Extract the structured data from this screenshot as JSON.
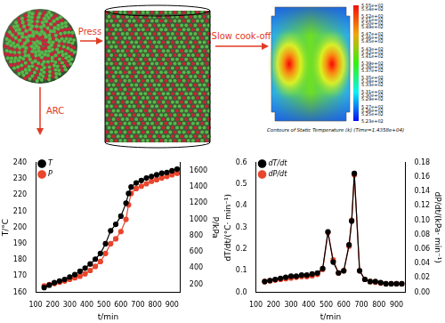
{
  "diagram": {
    "arrows": [
      {
        "label": "Press"
      },
      {
        "label": "Slow cook-off"
      },
      {
        "label": "ARC"
      }
    ],
    "contour": {
      "title": "Contours of Static Temperature (k) (Time=1.4358e+04)",
      "colorbar": {
        "range": [
          523,
          555
        ],
        "ticks": [
          {
            "value": 555,
            "label": "5.55e+02"
          },
          {
            "value": 554,
            "label": "5.54e+02"
          },
          {
            "value": 552,
            "label": "5.52e+02"
          },
          {
            "value": 551,
            "label": "5.51e+02"
          },
          {
            "value": 550,
            "label": "5.50e+02"
          },
          {
            "value": 549,
            "label": "5.49e+02"
          },
          {
            "value": 547,
            "label": "5.47e+02"
          },
          {
            "value": 546,
            "label": "5.46e+02"
          },
          {
            "value": 545,
            "label": "5.45e+02"
          },
          {
            "value": 543,
            "label": "5.43e+02"
          },
          {
            "value": 542,
            "label": "5.42e+02"
          },
          {
            "value": 541,
            "label": "5.41e+02"
          },
          {
            "value": 539,
            "label": "5.39e+02"
          },
          {
            "value": 538,
            "label": "5.38e+02"
          },
          {
            "value": 537,
            "label": "5.37e+02"
          },
          {
            "value": 535,
            "label": "5.35e+02"
          },
          {
            "value": 534,
            "label": "5.34e+02"
          },
          {
            "value": 533,
            "label": "5.33e+02"
          },
          {
            "value": 531,
            "label": "5.31e+02"
          },
          {
            "value": 530,
            "label": "5.30e+02"
          },
          {
            "value": 529,
            "label": "5.29e+02"
          },
          {
            "value": 527,
            "label": "5.27e+02"
          },
          {
            "value": 526,
            "label": "5.26e+02"
          },
          {
            "value": 525,
            "label": "5.25e+02"
          },
          {
            "value": 523,
            "label": "5.23e+02"
          }
        ]
      }
    }
  },
  "chart_data": [
    {
      "type": "line",
      "x_label": "t/min",
      "y_label": "T/°C",
      "y2_label": "P/kPa",
      "xlim": [
        100,
        950
      ],
      "xticks": [
        100,
        200,
        300,
        400,
        500,
        600,
        700,
        800,
        900
      ],
      "ylim": [
        160,
        240
      ],
      "yticks": [
        160,
        170,
        180,
        190,
        200,
        210,
        220,
        230,
        240
      ],
      "y2lim": [
        100,
        1700
      ],
      "y2ticks": [
        200,
        400,
        600,
        800,
        1000,
        1200,
        1400,
        1600
      ],
      "grid": false,
      "legend": "upper left",
      "x": [
        150,
        180,
        210,
        240,
        270,
        300,
        330,
        360,
        390,
        420,
        450,
        480,
        510,
        540,
        570,
        600,
        630,
        645,
        660,
        690,
        720,
        750,
        780,
        810,
        840,
        870,
        900,
        930
      ],
      "series": [
        {
          "name": "T",
          "color": "#000000",
          "marker": "circle",
          "line_style": "solid",
          "values": [
            163,
            164.5,
            166,
            167,
            168,
            169.5,
            171,
            173,
            175,
            177.5,
            180.5,
            184,
            190,
            198,
            202,
            207,
            215,
            221,
            225,
            227.5,
            229,
            230.5,
            231.5,
            232.5,
            233.5,
            234,
            235,
            236
          ]
        },
        {
          "name": "P",
          "color": "#e8452c",
          "marker": "circle",
          "line_style": "solid",
          "axis": "y2",
          "values": [
            180,
            195,
            210,
            225,
            240,
            260,
            280,
            300,
            330,
            370,
            420,
            480,
            580,
            700,
            760,
            850,
            1000,
            1180,
            1320,
            1380,
            1410,
            1440,
            1470,
            1490,
            1510,
            1530,
            1550,
            1570
          ]
        }
      ]
    },
    {
      "type": "line",
      "x_label": "t/min",
      "y_label": "dT/dt/(°C· min⁻¹)",
      "y2_label": "dP/dt/(kPa· min⁻¹)",
      "xlim": [
        100,
        950
      ],
      "xticks": [
        100,
        200,
        300,
        400,
        500,
        600,
        700,
        800,
        900
      ],
      "ylim": [
        0,
        0.6
      ],
      "yticks": [
        {
          "value": 0,
          "label": "0.0"
        },
        0.1,
        0.2,
        0.3,
        0.4,
        0.5,
        0.6
      ],
      "y2lim": [
        0,
        0.18
      ],
      "y2ticks": [
        {
          "value": 0,
          "label": "0.00"
        },
        0.02,
        0.04,
        0.06,
        0.08,
        {
          "value": 0.1,
          "label": "0.10"
        },
        0.12,
        0.14,
        0.16,
        0.18
      ],
      "grid": false,
      "legend": "upper left",
      "x": [
        150,
        180,
        210,
        240,
        270,
        300,
        330,
        360,
        390,
        420,
        450,
        480,
        510,
        540,
        570,
        600,
        630,
        645,
        660,
        690,
        720,
        750,
        780,
        810,
        840,
        870,
        900,
        930
      ],
      "series": [
        {
          "name": "dT/dt",
          "color": "#000000",
          "marker": "circle",
          "line_style": "solid",
          "values": [
            0.05,
            0.055,
            0.06,
            0.065,
            0.07,
            0.075,
            0.075,
            0.08,
            0.08,
            0.085,
            0.09,
            0.11,
            0.28,
            0.14,
            0.09,
            0.1,
            0.22,
            0.33,
            0.55,
            0.1,
            0.06,
            0.05,
            0.05,
            0.045,
            0.04,
            0.04,
            0.04,
            0.04
          ]
        },
        {
          "name": "dP/dt",
          "color": "#e8452c",
          "marker": "circle",
          "line_style": "solid",
          "axis": "y2",
          "values": [
            0.015,
            0.016,
            0.017,
            0.018,
            0.019,
            0.02,
            0.021,
            0.022,
            0.022,
            0.023,
            0.025,
            0.032,
            0.083,
            0.045,
            0.027,
            0.03,
            0.064,
            0.1,
            0.163,
            0.03,
            0.018,
            0.015,
            0.014,
            0.013,
            0.012,
            0.012,
            0.012,
            0.012
          ]
        }
      ]
    }
  ]
}
